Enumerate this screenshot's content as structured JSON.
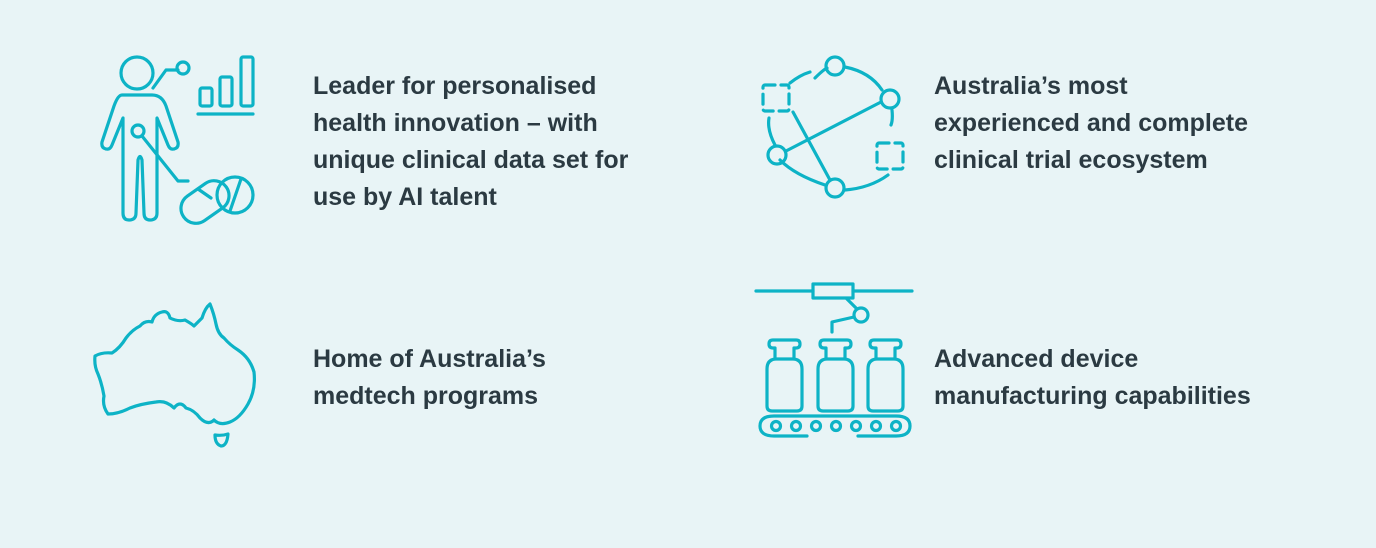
{
  "colors": {
    "background": "#e8f4f6",
    "icon": "#0db3c6",
    "text": "#2b3a42"
  },
  "items": [
    {
      "icon": "person-health-data-icon",
      "text": "Leader for personalised\nhealth innovation – with\nunique clinical data set for\nuse by AI talent"
    },
    {
      "icon": "network-ecosystem-icon",
      "text": "Australia’s most\nexperienced and complete\nclinical trial ecosystem"
    },
    {
      "icon": "australia-map-icon",
      "text": "Home of Australia’s\nmedtech programs"
    },
    {
      "icon": "manufacturing-conveyor-icon",
      "text": "Advanced device\nmanufacturing capabilities"
    }
  ]
}
